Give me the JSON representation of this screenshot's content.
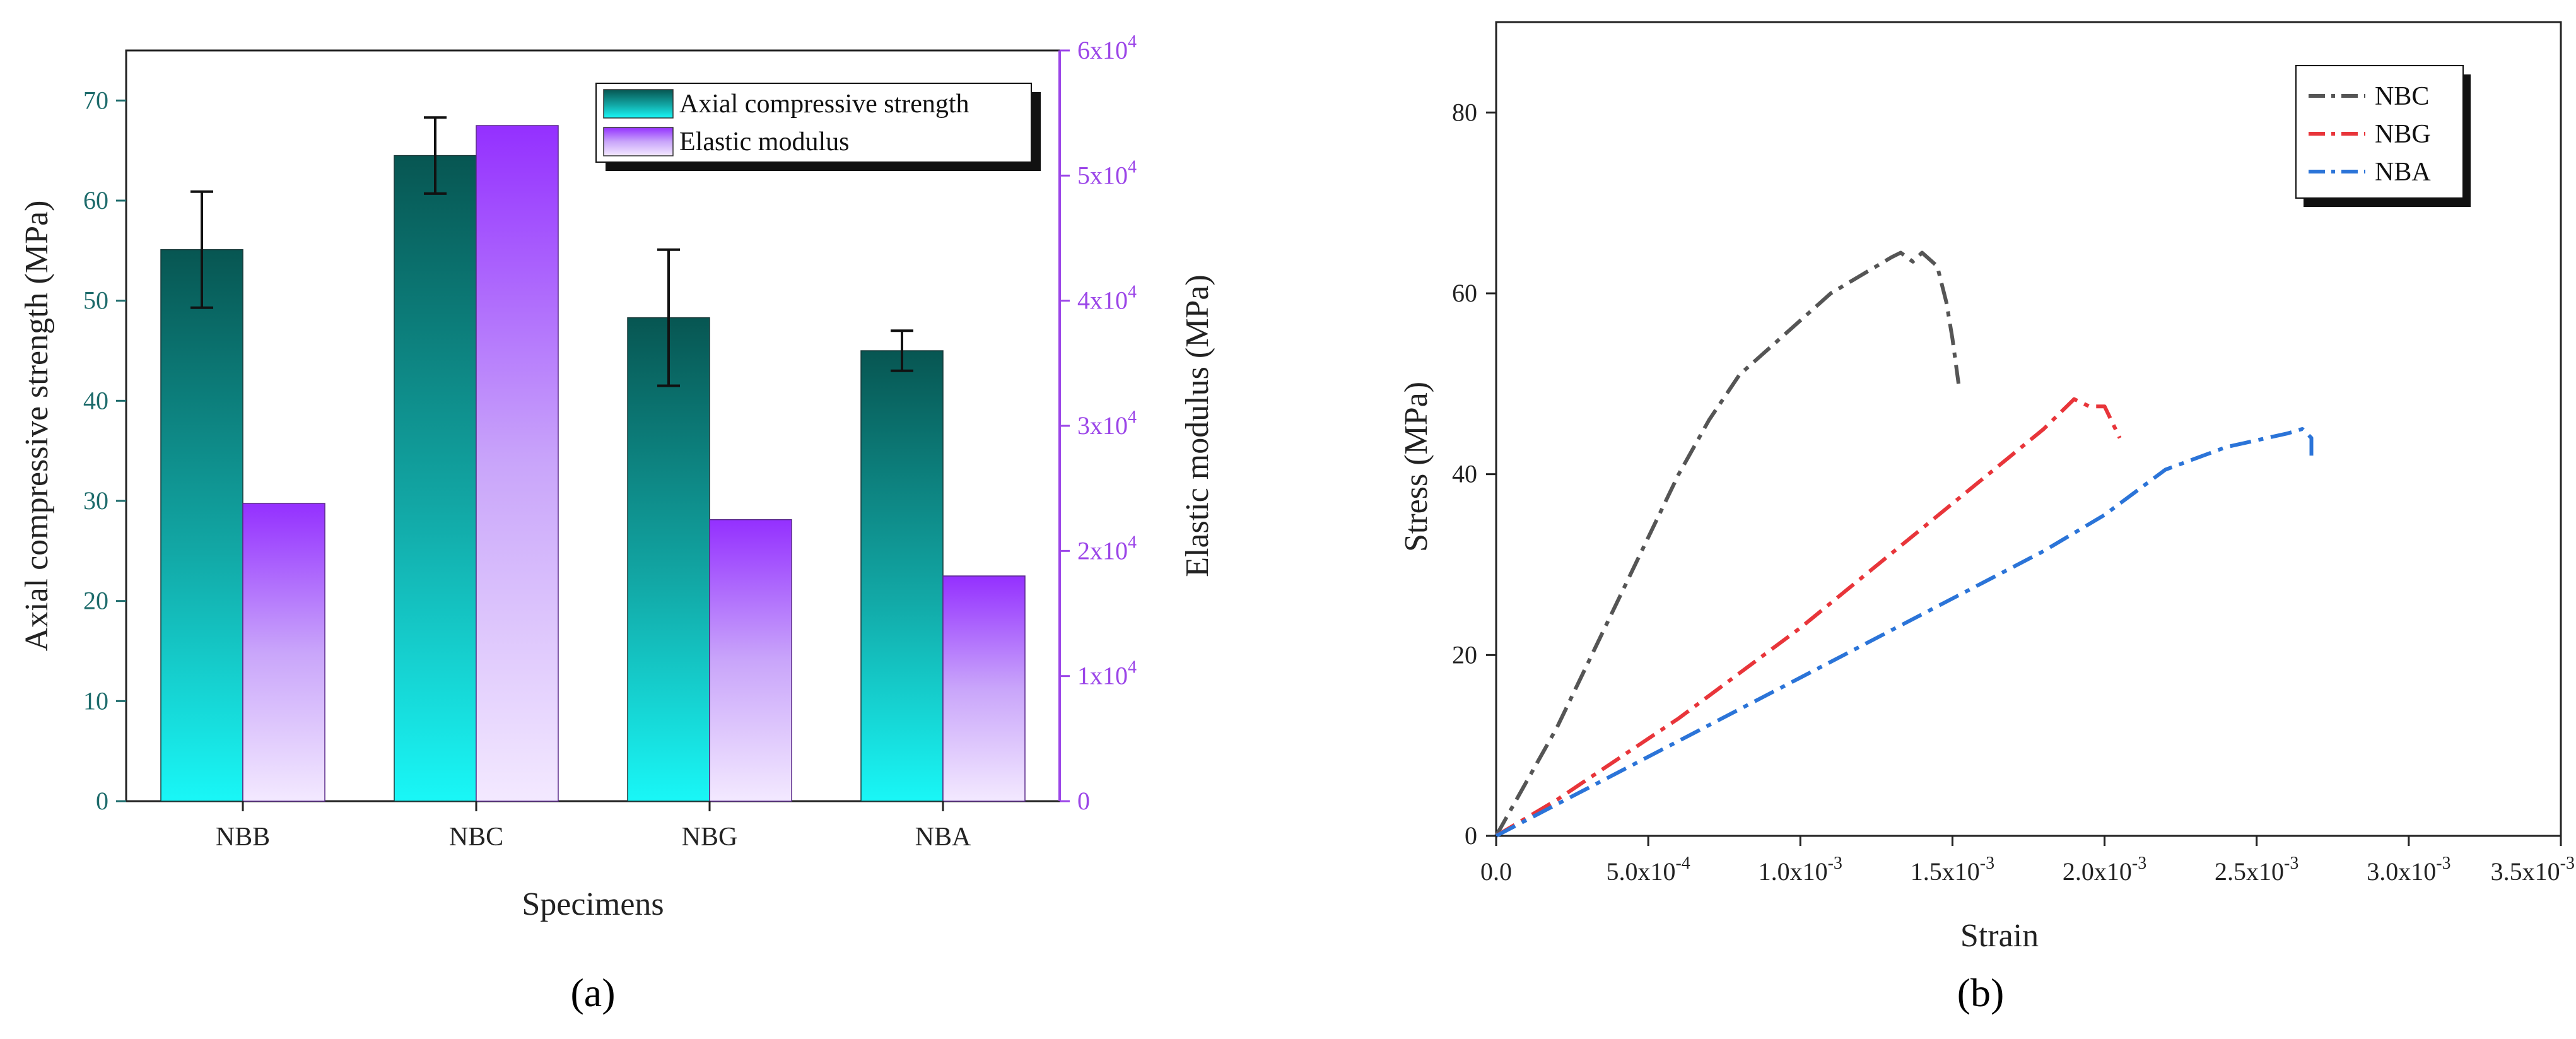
{
  "panel_labels": [
    "(a)",
    "(b)"
  ],
  "chart_data": [
    {
      "type": "bar",
      "xlabel": "Specimens",
      "categories": [
        "NBB",
        "NBC",
        "NBG",
        "NBA"
      ],
      "series": [
        {
          "name": "Axial compressive strength",
          "axis": "left",
          "values": [
            55.1,
            64.5,
            48.3,
            45.0
          ],
          "error": [
            5.8,
            3.8,
            6.8,
            2.0
          ],
          "color": "#0a5e58"
        },
        {
          "name": "Elastic modulus",
          "axis": "right",
          "values": [
            23800,
            54000,
            22500,
            18000
          ],
          "color": "#9b3bff"
        }
      ],
      "ylabel": "Axial compressive strength (MPa)",
      "ylim": [
        0,
        75
      ],
      "yticks": [
        "0",
        "10",
        "20",
        "30",
        "40",
        "50",
        "60",
        "70"
      ],
      "y2label": "Elastic modulus (MPa)",
      "y2lim": [
        0,
        60000
      ],
      "y2ticks": [
        {
          "mantissa": "0",
          "exp": ""
        },
        {
          "mantissa": "1x10",
          "exp": "4"
        },
        {
          "mantissa": "2x10",
          "exp": "4"
        },
        {
          "mantissa": "3x10",
          "exp": "4"
        },
        {
          "mantissa": "4x10",
          "exp": "4"
        },
        {
          "mantissa": "5x10",
          "exp": "4"
        },
        {
          "mantissa": "6x10",
          "exp": "4"
        }
      ],
      "legend_position": "top-right"
    },
    {
      "type": "line",
      "xlabel": "Strain",
      "ylabel": "Stress (MPa)",
      "xlim": [
        0,
        0.0035
      ],
      "ylim": [
        0,
        90
      ],
      "xticks": [
        {
          "mantissa": "0.0",
          "exp": ""
        },
        {
          "mantissa": "5.0x10",
          "exp": "-4"
        },
        {
          "mantissa": "1.0x10",
          "exp": "-3"
        },
        {
          "mantissa": "1.5x10",
          "exp": "-3"
        },
        {
          "mantissa": "2.0x10",
          "exp": "-3"
        },
        {
          "mantissa": "2.5x10",
          "exp": "-3"
        },
        {
          "mantissa": "3.0x10",
          "exp": "-3"
        },
        {
          "mantissa": "3.5x10",
          "exp": "-3"
        }
      ],
      "yticks": [
        "0",
        "20",
        "40",
        "60",
        "80"
      ],
      "series": [
        {
          "name": "NBC",
          "color": "#555555",
          "x": [
            0,
            0.0001,
            0.0002,
            0.0003,
            0.0004,
            0.0005,
            0.0006,
            0.0007,
            0.0008,
            0.0009,
            0.001,
            0.0011,
            0.0012,
            0.0013,
            0.00133,
            0.00137,
            0.0014,
            0.00145,
            0.00148,
            0.0015,
            0.00152
          ],
          "y": [
            0,
            6,
            12,
            19,
            26,
            33,
            40,
            46,
            51,
            54,
            57,
            60,
            62,
            64,
            64.5,
            63.5,
            64.5,
            63,
            59,
            55,
            50
          ]
        },
        {
          "name": "NBG",
          "color": "#e8353a",
          "x": [
            0,
            0.0002,
            0.0004,
            0.0006,
            0.0008,
            0.001,
            0.0012,
            0.0014,
            0.0016,
            0.0018,
            0.0019,
            0.00195,
            0.002,
            0.00205
          ],
          "y": [
            0,
            4,
            8.5,
            13,
            18,
            23,
            28.5,
            34,
            39.5,
            45,
            48.3,
            47.5,
            47.5,
            44
          ]
        },
        {
          "name": "NBA",
          "color": "#2b74d8",
          "x": [
            0,
            0.0002,
            0.0004,
            0.0006,
            0.0008,
            0.001,
            0.0012,
            0.0014,
            0.0016,
            0.0018,
            0.002,
            0.0021,
            0.0022,
            0.0024,
            0.0026,
            0.00265,
            0.00268,
            0.00268
          ],
          "y": [
            0,
            3.5,
            7,
            10.5,
            14,
            17.5,
            21,
            24.5,
            28,
            31.5,
            35.5,
            38,
            40.5,
            43,
            44.5,
            45,
            44,
            42
          ]
        }
      ],
      "legend_position": "top-right"
    }
  ]
}
